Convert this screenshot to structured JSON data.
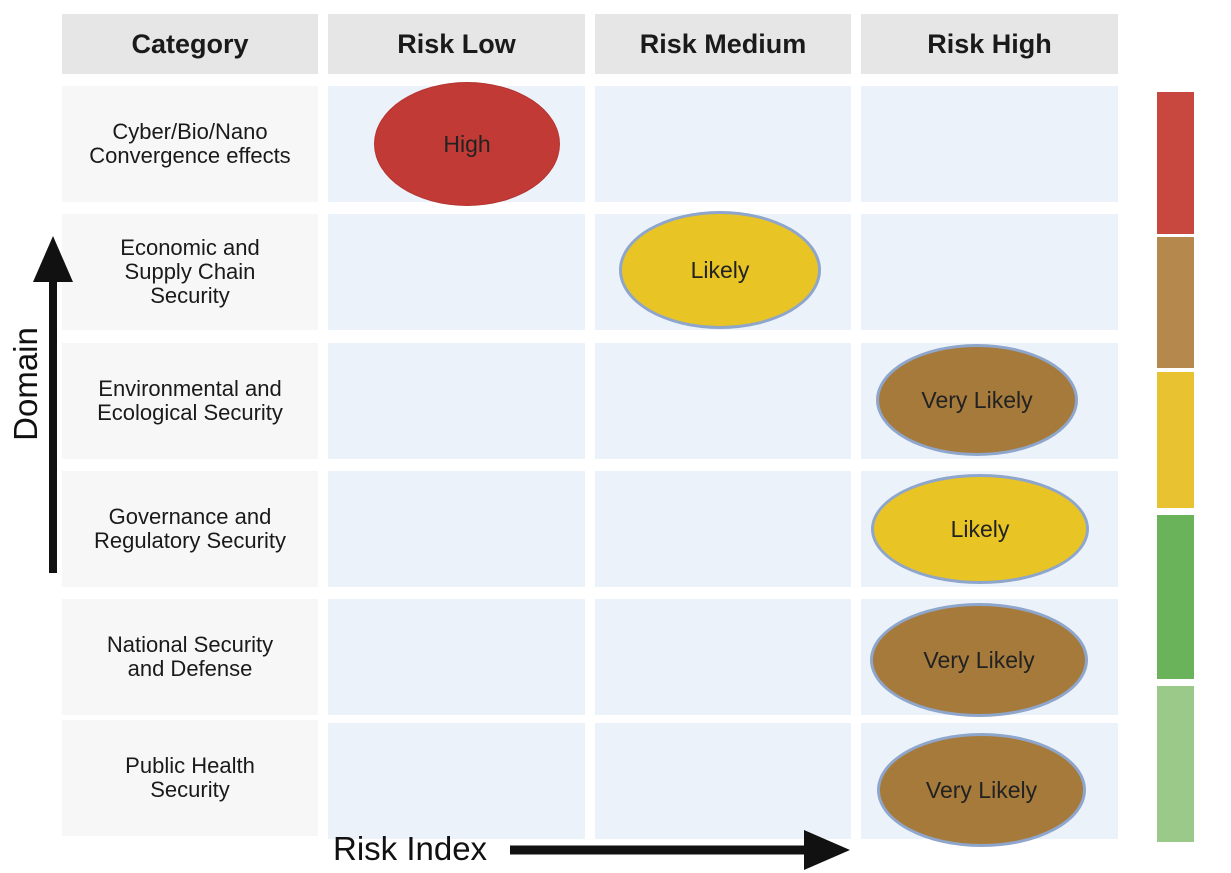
{
  "headers": {
    "category": "Category",
    "columns": [
      "Risk Low",
      "Risk Medium",
      "Risk High"
    ]
  },
  "rows": [
    {
      "category": "Cyber/Bio/Nano\nConvergence effects",
      "column": 0,
      "rating": "High",
      "level": "high"
    },
    {
      "category": "Economic and\nSupply Chain\nSecurity",
      "column": 1,
      "rating": "Likely",
      "level": "likely"
    },
    {
      "category": "Environmental and\nEcological Security",
      "column": 2,
      "rating": "Very Likely",
      "level": "vlikely"
    },
    {
      "category": "Governance and\nRegulatory Security",
      "column": 2,
      "rating": "Likely",
      "level": "likely"
    },
    {
      "category": "National Security\nand Defense",
      "column": 2,
      "rating": "Very Likely",
      "level": "vlikely"
    },
    {
      "category": "Public Health\nSecurity",
      "column": 2,
      "rating": "Very Likely",
      "level": "vlikely"
    }
  ],
  "axes": {
    "y_label": "Domain",
    "x_label": "Risk Index"
  },
  "scale_colors": [
    "#c8473f",
    "#b5884e",
    "#e9c232",
    "#6bb35a",
    "#9bc98a"
  ],
  "level_colors": {
    "high": "#c23a35",
    "likely": "#e8c424",
    "vlikely": "#a67a3a"
  }
}
